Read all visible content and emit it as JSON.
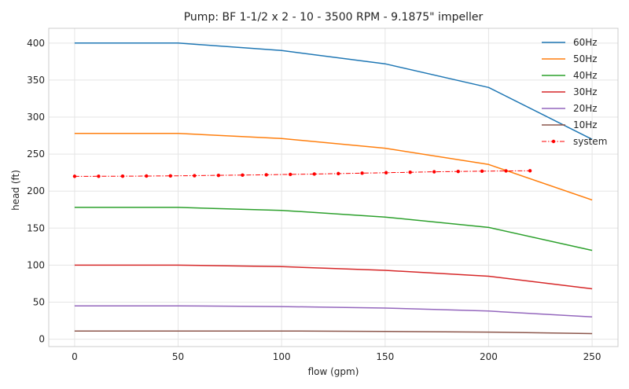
{
  "chart_data": {
    "type": "line",
    "title": "Pump: BF 1-1/2 x 2 - 10 - 3500 RPM - 9.1875\" impeller",
    "xlabel": "flow (gpm)",
    "ylabel": "head (ft)",
    "xlim": [
      -12.5,
      262.5
    ],
    "ylim": [
      -10,
      420
    ],
    "xticks": [
      0,
      50,
      100,
      150,
      200,
      250
    ],
    "yticks": [
      0,
      50,
      100,
      150,
      200,
      250,
      300,
      350,
      400
    ],
    "grid": true,
    "legend_position": "top-right",
    "series": [
      {
        "name": "60Hz",
        "color": "#1f77b4",
        "style": "solid",
        "x": [
          0,
          50,
          100,
          150,
          200,
          250
        ],
        "y": [
          400,
          400,
          390,
          372,
          340,
          270
        ]
      },
      {
        "name": "50Hz",
        "color": "#ff7f0e",
        "style": "solid",
        "x": [
          0,
          50,
          100,
          150,
          200,
          250
        ],
        "y": [
          278,
          278,
          271,
          258,
          236,
          188
        ]
      },
      {
        "name": "40Hz",
        "color": "#2ca02c",
        "style": "solid",
        "x": [
          0,
          50,
          100,
          150,
          200,
          250
        ],
        "y": [
          178,
          178,
          174,
          165,
          151,
          120
        ]
      },
      {
        "name": "30Hz",
        "color": "#d62728",
        "style": "solid",
        "x": [
          0,
          50,
          100,
          150,
          200,
          250
        ],
        "y": [
          100,
          100,
          98,
          93,
          85,
          68
        ]
      },
      {
        "name": "20Hz",
        "color": "#9467bd",
        "style": "solid",
        "x": [
          0,
          50,
          100,
          150,
          200,
          250
        ],
        "y": [
          45,
          45,
          44,
          42,
          38,
          30
        ]
      },
      {
        "name": "10Hz",
        "color": "#8c564b",
        "style": "solid",
        "x": [
          0,
          50,
          100,
          150,
          200,
          250
        ],
        "y": [
          11,
          11,
          11,
          10.5,
          9.5,
          7.5
        ]
      },
      {
        "name": "system",
        "color": "#ff0000",
        "style": "dashdot-marker",
        "x": [
          0,
          11.6,
          23.2,
          34.7,
          46.3,
          57.9,
          69.5,
          81.1,
          92.6,
          104.2,
          115.8,
          127.4,
          138.9,
          150.5,
          162.1,
          173.7,
          185.3,
          196.8,
          208.4,
          220
        ],
        "y": [
          220,
          220.1,
          220.2,
          220.4,
          220.6,
          220.9,
          221.3,
          221.7,
          222.1,
          222.6,
          223.1,
          223.7,
          224.3,
          224.9,
          225.5,
          226.1,
          226.6,
          227,
          227.3,
          227.5
        ]
      }
    ]
  }
}
